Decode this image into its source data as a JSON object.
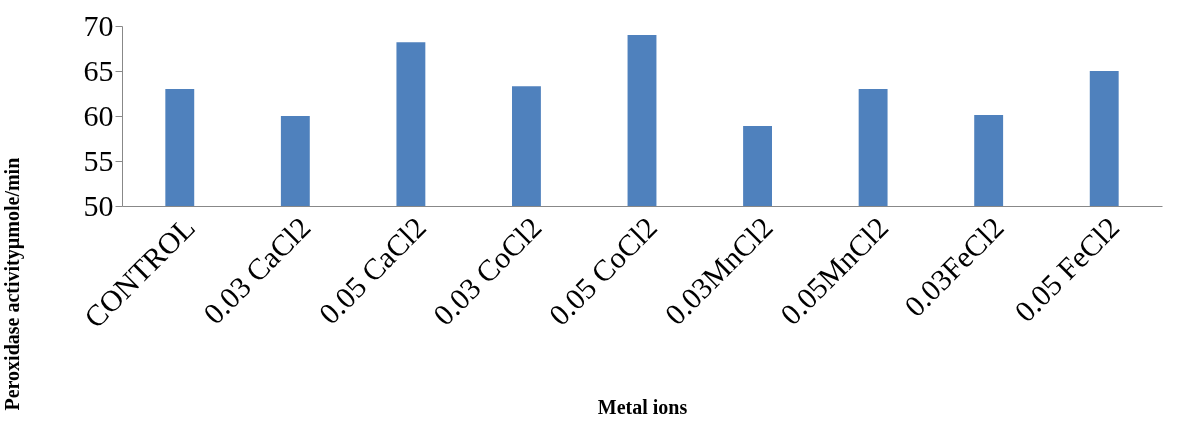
{
  "chart_data": {
    "type": "bar",
    "xlabel": "Metal ions",
    "ylabel": "Peroxidase activityµmole/min",
    "categories": [
      "CONTROL",
      "0.03 CaCl2",
      "0.05 CaCl2",
      "0.03 CoCl2",
      "0.05 CoCl2",
      "0.03MnCl2",
      "0.05MnCl2",
      "0.03FeCl2",
      "0.05 FeCl2"
    ],
    "values": [
      63,
      60,
      68.2,
      63.3,
      69,
      58.9,
      63,
      60.1,
      65
    ],
    "color": "#4f81bd",
    "ylim": [
      50,
      70
    ],
    "yticks": [
      50,
      55,
      60,
      65,
      70
    ],
    "grid": false
  }
}
